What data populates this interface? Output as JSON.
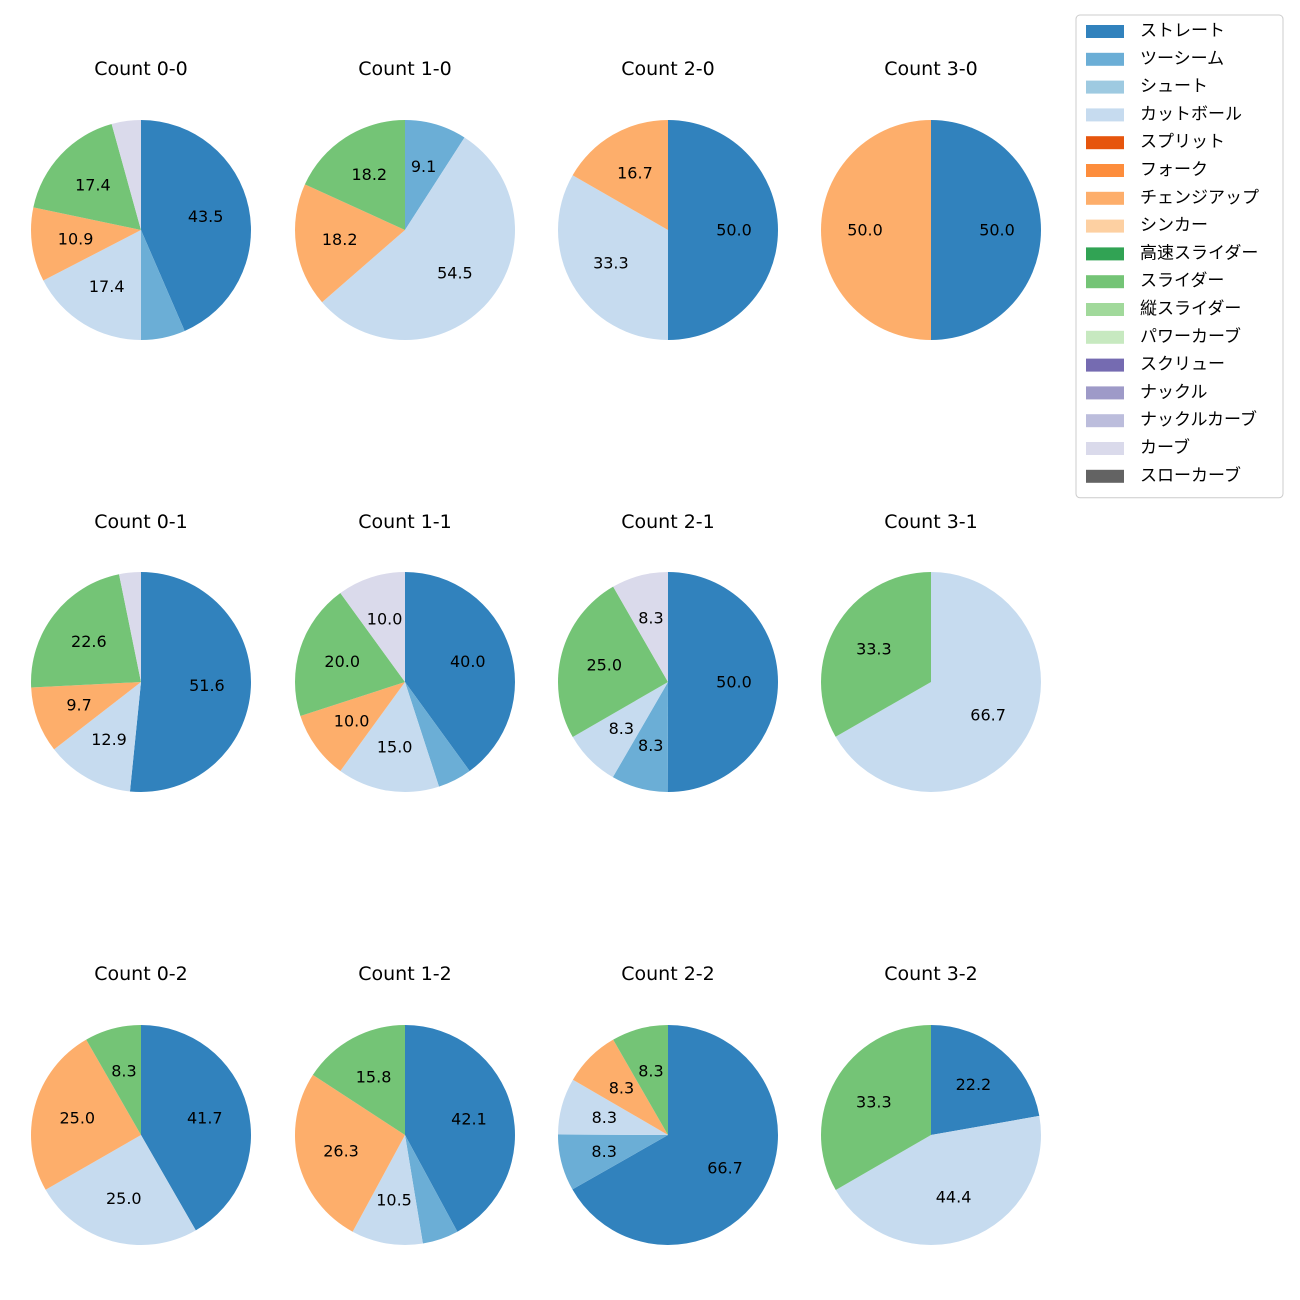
{
  "chart_data": {
    "type": "pie",
    "start_angle": "12 o'clock",
    "direction": "clockwise",
    "pitch_types": [
      {
        "name": "ストレート",
        "color": "#3182bd"
      },
      {
        "name": "ツーシーム",
        "color": "#6baed6"
      },
      {
        "name": "シュート",
        "color": "#9ecae1"
      },
      {
        "name": "カットボール",
        "color": "#c6dbef"
      },
      {
        "name": "スプリット",
        "color": "#e6550d"
      },
      {
        "name": "フォーク",
        "color": "#fd8d3c"
      },
      {
        "name": "チェンジアップ",
        "color": "#fdae6b"
      },
      {
        "name": "シンカー",
        "color": "#fdd0a2"
      },
      {
        "name": "高速スライダー",
        "color": "#31a354"
      },
      {
        "name": "スライダー",
        "color": "#74c476"
      },
      {
        "name": "縦スライダー",
        "color": "#a1d99b"
      },
      {
        "name": "パワーカーブ",
        "color": "#c7e9c0"
      },
      {
        "name": "スクリュー",
        "color": "#756bb1"
      },
      {
        "name": "ナックル",
        "color": "#9e9ac8"
      },
      {
        "name": "ナックルカーブ",
        "color": "#bcbddc"
      },
      {
        "name": "カーブ",
        "color": "#dadaeb"
      },
      {
        "name": "スローカーブ",
        "color": "#636363"
      }
    ],
    "charts": [
      {
        "title": "Count 0-0",
        "slices": [
          {
            "type": "ストレート",
            "value": 43.5,
            "label": "43.5"
          },
          {
            "type": "ツーシーム",
            "value": 6.5,
            "label": ""
          },
          {
            "type": "カットボール",
            "value": 17.4,
            "label": "17.4"
          },
          {
            "type": "チェンジアップ",
            "value": 10.9,
            "label": "10.9"
          },
          {
            "type": "スライダー",
            "value": 17.4,
            "label": "17.4"
          },
          {
            "type": "カーブ",
            "value": 4.3,
            "label": ""
          }
        ]
      },
      {
        "title": "Count 1-0",
        "slices": [
          {
            "type": "ツーシーム",
            "value": 9.1,
            "label": "9.1"
          },
          {
            "type": "カットボール",
            "value": 54.5,
            "label": "54.5"
          },
          {
            "type": "チェンジアップ",
            "value": 18.2,
            "label": "18.2"
          },
          {
            "type": "スライダー",
            "value": 18.2,
            "label": "18.2"
          }
        ]
      },
      {
        "title": "Count 2-0",
        "slices": [
          {
            "type": "ストレート",
            "value": 50.0,
            "label": "50.0"
          },
          {
            "type": "カットボール",
            "value": 33.3,
            "label": "33.3"
          },
          {
            "type": "チェンジアップ",
            "value": 16.7,
            "label": "16.7"
          }
        ]
      },
      {
        "title": "Count 3-0",
        "slices": [
          {
            "type": "ストレート",
            "value": 50.0,
            "label": "50.0"
          },
          {
            "type": "チェンジアップ",
            "value": 50.0,
            "label": "50.0"
          }
        ]
      },
      {
        "title": "Count 0-1",
        "slices": [
          {
            "type": "ストレート",
            "value": 51.6,
            "label": "51.6"
          },
          {
            "type": "カットボール",
            "value": 12.9,
            "label": "12.9"
          },
          {
            "type": "チェンジアップ",
            "value": 9.7,
            "label": "9.7"
          },
          {
            "type": "スライダー",
            "value": 22.6,
            "label": "22.6"
          },
          {
            "type": "カーブ",
            "value": 3.2,
            "label": ""
          }
        ]
      },
      {
        "title": "Count 1-1",
        "slices": [
          {
            "type": "ストレート",
            "value": 40.0,
            "label": "40.0"
          },
          {
            "type": "ツーシーム",
            "value": 5.0,
            "label": ""
          },
          {
            "type": "カットボール",
            "value": 15.0,
            "label": "15.0"
          },
          {
            "type": "チェンジアップ",
            "value": 10.0,
            "label": "10.0"
          },
          {
            "type": "スライダー",
            "value": 20.0,
            "label": "20.0"
          },
          {
            "type": "カーブ",
            "value": 10.0,
            "label": "10.0"
          }
        ]
      },
      {
        "title": "Count 2-1",
        "slices": [
          {
            "type": "ストレート",
            "value": 50.0,
            "label": "50.0"
          },
          {
            "type": "ツーシーム",
            "value": 8.3,
            "label": "8.3"
          },
          {
            "type": "カットボール",
            "value": 8.3,
            "label": "8.3"
          },
          {
            "type": "スライダー",
            "value": 25.0,
            "label": "25.0"
          },
          {
            "type": "カーブ",
            "value": 8.3,
            "label": "8.3"
          }
        ]
      },
      {
        "title": "Count 3-1",
        "slices": [
          {
            "type": "カットボール",
            "value": 66.7,
            "label": "66.7"
          },
          {
            "type": "スライダー",
            "value": 33.3,
            "label": "33.3"
          }
        ]
      },
      {
        "title": "Count 0-2",
        "slices": [
          {
            "type": "ストレート",
            "value": 41.7,
            "label": "41.7"
          },
          {
            "type": "カットボール",
            "value": 25.0,
            "label": "25.0"
          },
          {
            "type": "チェンジアップ",
            "value": 25.0,
            "label": "25.0"
          },
          {
            "type": "スライダー",
            "value": 8.3,
            "label": "8.3"
          }
        ]
      },
      {
        "title": "Count 1-2",
        "slices": [
          {
            "type": "ストレート",
            "value": 42.1,
            "label": "42.1"
          },
          {
            "type": "ツーシーム",
            "value": 5.3,
            "label": ""
          },
          {
            "type": "カットボール",
            "value": 10.5,
            "label": "10.5"
          },
          {
            "type": "チェンジアップ",
            "value": 26.3,
            "label": "26.3"
          },
          {
            "type": "スライダー",
            "value": 15.8,
            "label": "15.8"
          }
        ]
      },
      {
        "title": "Count 2-2",
        "slices": [
          {
            "type": "ストレート",
            "value": 66.7,
            "label": "66.7"
          },
          {
            "type": "ツーシーム",
            "value": 8.3,
            "label": "8.3"
          },
          {
            "type": "カットボール",
            "value": 8.3,
            "label": "8.3"
          },
          {
            "type": "チェンジアップ",
            "value": 8.3,
            "label": "8.3"
          },
          {
            "type": "スライダー",
            "value": 8.3,
            "label": "8.3"
          }
        ]
      },
      {
        "title": "Count 3-2",
        "slices": [
          {
            "type": "ストレート",
            "value": 22.2,
            "label": "22.2"
          },
          {
            "type": "カットボール",
            "value": 44.4,
            "label": "44.4"
          },
          {
            "type": "スライダー",
            "value": 33.3,
            "label": "33.3"
          }
        ]
      }
    ]
  }
}
